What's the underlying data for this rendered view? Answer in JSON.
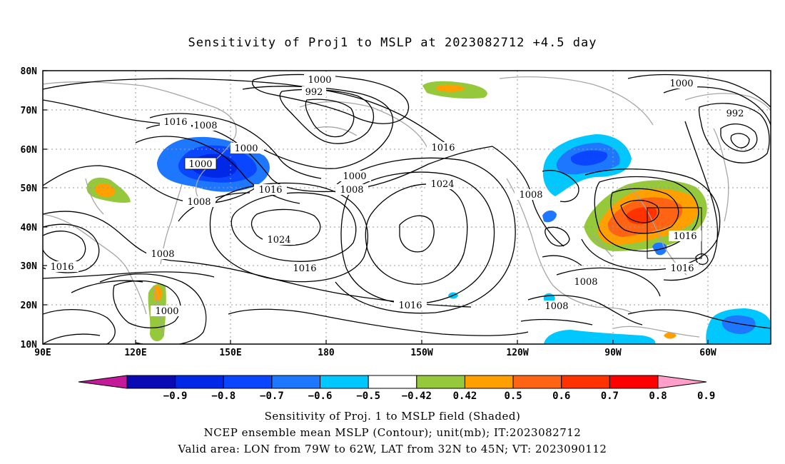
{
  "title": "Sensitivity of Proj1 to MSLP at 2023082712 +4.5 day",
  "lat_labels": [
    "80N",
    "70N",
    "60N",
    "50N",
    "40N",
    "30N",
    "20N",
    "10N"
  ],
  "lon_labels": [
    "90E",
    "120E",
    "150E",
    "180",
    "150W",
    "120W",
    "90W",
    "60W"
  ],
  "contour_labels": [
    {
      "text": "1000"
    },
    {
      "text": "992"
    },
    {
      "text": "1000"
    },
    {
      "text": "992"
    },
    {
      "text": "1016"
    },
    {
      "text": "1008"
    },
    {
      "text": "1000"
    },
    {
      "text": "1000"
    },
    {
      "text": "1016"
    },
    {
      "text": "1000"
    },
    {
      "text": "1016"
    },
    {
      "text": "1008"
    },
    {
      "text": "1024"
    },
    {
      "text": "1008"
    },
    {
      "text": "1024"
    },
    {
      "text": "1016"
    },
    {
      "text": "1008"
    },
    {
      "text": "1016"
    },
    {
      "text": "1016"
    },
    {
      "text": "1000"
    },
    {
      "text": "1016"
    },
    {
      "text": "1008"
    },
    {
      "text": "1008"
    },
    {
      "text": "1016"
    },
    {
      "text": "1008"
    }
  ],
  "colorbar": {
    "labels": [
      "-0.9",
      "-0.8",
      "-0.7",
      "-0.6",
      "-0.5",
      "-0.42",
      "0.42",
      "0.5",
      "0.6",
      "0.7",
      "0.8",
      "0.9"
    ],
    "colors": [
      "#c41a9a",
      "#0a0ab4",
      "#0028e6",
      "#0a46ff",
      "#1e78ff",
      "#00c8ff",
      "#ffffff",
      "#96c83c",
      "#ffa000",
      "#ff6414",
      "#ff3200",
      "#ff0000",
      "#ff9ec8"
    ]
  },
  "captions": {
    "line1": "Sensitivity of Proj. 1 to MSLP field (Shaded)",
    "line2": "NCEP ensemble mean MSLP (Contour); unit(mb); IT:2023082712",
    "line3": "Valid area: LON from 79W to 62W, LAT from 32N to 45N; VT: 2023090112"
  }
}
